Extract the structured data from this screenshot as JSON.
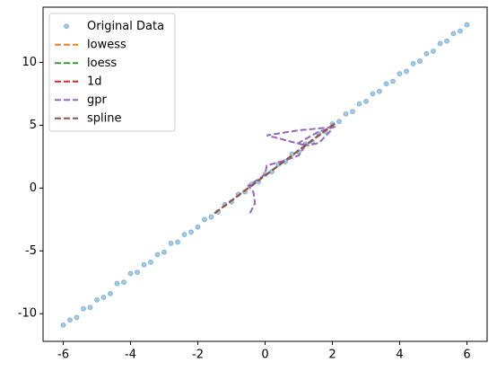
{
  "chart_data": {
    "type": "scatter_lines",
    "xlim": [
      -6.6,
      6.6
    ],
    "ylim": [
      -12.2,
      14.4
    ],
    "xticks": [
      -6,
      -4,
      -2,
      0,
      2,
      4,
      6
    ],
    "yticks": [
      -10,
      -5,
      0,
      5,
      10
    ],
    "legend": "upper left",
    "series": [
      {
        "name": "Original Data",
        "kind": "scatter",
        "color": "#1f77b4",
        "x": [
          -6,
          -5.8,
          -5.6,
          -5.4,
          -5.2,
          -5,
          -4.8,
          -4.6,
          -4.4,
          -4.2,
          -4,
          -3.8,
          -3.6,
          -3.4,
          -3.2,
          -3,
          -2.8,
          -2.6,
          -2.4,
          -2.2,
          -2,
          -1.8,
          -1.6,
          -1.4,
          -1.2,
          -1,
          -0.8,
          -0.6,
          -0.4,
          -0.2,
          0,
          0.2,
          0.4,
          0.6,
          0.8,
          1,
          1.2,
          1.4,
          1.6,
          1.8,
          2,
          2.2,
          2.4,
          2.6,
          2.8,
          3,
          3.2,
          3.4,
          3.6,
          3.8,
          4,
          4.2,
          4.4,
          4.6,
          4.8,
          5,
          5.2,
          5.4,
          5.6,
          5.8,
          6
        ],
        "values": [
          -10.9,
          -10.5,
          -10.3,
          -9.6,
          -9.5,
          -8.9,
          -8.7,
          -8.4,
          -7.6,
          -7.5,
          -6.8,
          -6.7,
          -6.1,
          -5.9,
          -5.3,
          -5.1,
          -4.4,
          -4.3,
          -3.7,
          -3.5,
          -3.1,
          -2.5,
          -2.3,
          -1.9,
          -1.3,
          -1.1,
          -0.5,
          -0.3,
          0.3,
          0.5,
          1.1,
          1.3,
          1.9,
          2.1,
          2.7,
          2.9,
          3.5,
          3.7,
          4.3,
          4.5,
          5.1,
          5.3,
          5.9,
          6.1,
          6.7,
          6.9,
          7.5,
          7.7,
          8.3,
          8.5,
          9.1,
          9.3,
          9.9,
          10.1,
          10.7,
          10.9,
          11.5,
          11.7,
          12.3,
          12.5,
          13
        ]
      },
      {
        "name": "lowess",
        "kind": "line",
        "color": "#ff7f0e",
        "x": [
          -1.5,
          -1,
          -0.5,
          0,
          0.5,
          1,
          1.5,
          2.1
        ],
        "values": [
          -2,
          -1,
          0,
          1,
          2,
          3,
          4,
          5.2
        ]
      },
      {
        "name": "loess",
        "kind": "line",
        "color": "#2ca02c",
        "x": [
          -1.5,
          -1,
          -0.5,
          0,
          0.5,
          1,
          1.5,
          2.1
        ],
        "values": [
          -2,
          -1,
          0,
          1,
          2,
          3,
          4,
          5.2
        ]
      },
      {
        "name": "1d",
        "kind": "line",
        "color": "#d62728",
        "x": [
          -1.5,
          -1,
          -0.5,
          0,
          0.5,
          1,
          1.5,
          2.1
        ],
        "values": [
          -2,
          -1,
          0,
          1,
          2,
          3,
          4,
          5.2
        ]
      },
      {
        "name": "gpr",
        "kind": "line",
        "color": "#9467bd",
        "x": [
          -0.45,
          -0.3,
          -0.35,
          -0.5,
          -0.2,
          0,
          0.05,
          0.6,
          1,
          1.2,
          0.05,
          1,
          1.8,
          2.1,
          1.6,
          1,
          1.3,
          1.6,
          2
        ],
        "values": [
          -2,
          -1.2,
          -0.3,
          0.2,
          0.7,
          1.1,
          1.8,
          2.2,
          2.6,
          3.4,
          4.2,
          4.6,
          4.8,
          4.9,
          4.5,
          3.6,
          3.4,
          3.6,
          4.7
        ]
      },
      {
        "name": "spline",
        "kind": "line",
        "color": "#8c564b",
        "x": [
          -1.5,
          -1,
          -0.5,
          0,
          0.5,
          1,
          1.5,
          2.1
        ],
        "values": [
          -2,
          -1,
          0,
          1,
          2,
          3,
          4,
          5.2
        ]
      }
    ]
  }
}
